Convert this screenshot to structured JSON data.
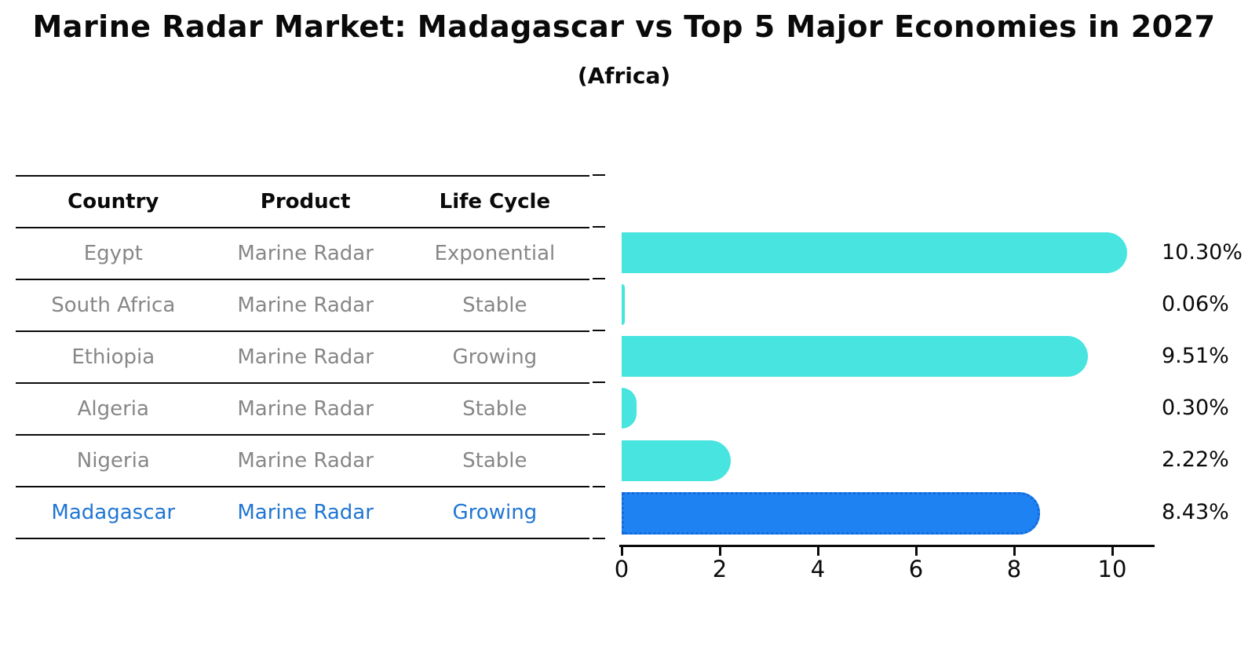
{
  "header": {
    "title": "Marine Radar Market: Madagascar vs Top 5 Major Economies in 2027",
    "subtitle": "(Africa)"
  },
  "table": {
    "columns": [
      "Country",
      "Product",
      "Life Cycle"
    ],
    "rows": [
      {
        "country": "Egypt",
        "product": "Marine Radar",
        "life_cycle": "Exponential",
        "highlighted": false
      },
      {
        "country": "South Africa",
        "product": "Marine Radar",
        "life_cycle": "Stable",
        "highlighted": false
      },
      {
        "country": "Ethiopia",
        "product": "Marine Radar",
        "life_cycle": "Growing",
        "highlighted": false
      },
      {
        "country": "Algeria",
        "product": "Marine Radar",
        "life_cycle": "Stable",
        "highlighted": false
      },
      {
        "country": "Nigeria",
        "product": "Marine Radar",
        "life_cycle": "Stable",
        "highlighted": false
      },
      {
        "country": "Madagascar",
        "product": "Marine Radar",
        "life_cycle": "Growing",
        "highlighted": true
      }
    ]
  },
  "chart_data": {
    "type": "bar",
    "orientation": "horizontal",
    "categories": [
      "Egypt",
      "South Africa",
      "Ethiopia",
      "Algeria",
      "Nigeria",
      "Madagascar"
    ],
    "values": [
      10.3,
      0.06,
      9.51,
      0.3,
      2.22,
      8.43
    ],
    "value_labels": [
      "10.30%",
      "0.06%",
      "9.51%",
      "0.30%",
      "2.22%",
      "8.43%"
    ],
    "xticks": [
      0,
      2,
      4,
      6,
      8,
      10
    ],
    "xlim": [
      0,
      10.85
    ],
    "grid": false,
    "legend": "none",
    "title": "Marine Radar Market: Madagascar vs Top 5 Major Economies in 2027 (Africa)",
    "bar_color": "#48e4e0",
    "highlight_index": 5,
    "highlight_color": "#1e82f2",
    "highlight_border_color": "#1668d9",
    "text_color": "#878787",
    "highlight_text_color": "#2176d2"
  }
}
